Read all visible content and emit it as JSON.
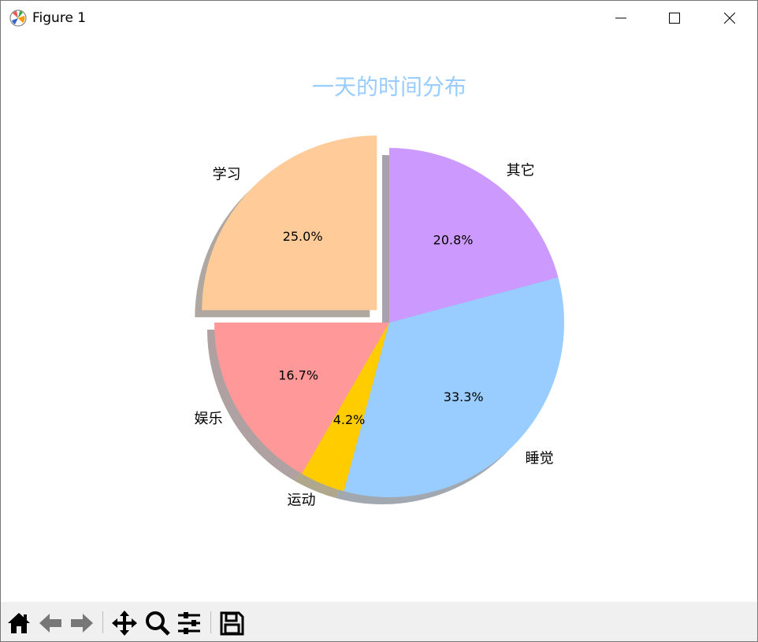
{
  "window": {
    "title": "Figure 1",
    "icon": "matplotlib-icon",
    "controls": [
      "minimize-icon",
      "maximize-icon",
      "close-icon"
    ]
  },
  "toolbar": {
    "buttons": [
      "home-icon",
      "back-icon",
      "forward-icon",
      "pan-icon",
      "zoom-icon",
      "configure-subplots-icon",
      "save-icon"
    ]
  },
  "chart_data": {
    "type": "pie",
    "title": "一天的时间分布",
    "title_color": "#99CCFF",
    "labels": [
      "学习",
      "娱乐",
      "运动",
      "睡觉",
      "其它"
    ],
    "values": [
      6,
      4,
      1,
      8,
      5
    ],
    "pct_labels": [
      "25.0%",
      "16.7%",
      "4.2%",
      "33.3%",
      "20.8%"
    ],
    "colors": [
      "#FFCC99",
      "#FF9999",
      "#FFCC00",
      "#99CCFF",
      "#CC99FF"
    ],
    "explode": [
      0.1,
      0,
      0,
      0,
      0
    ],
    "startangle": 90,
    "counterclock": true,
    "shadow": true
  }
}
